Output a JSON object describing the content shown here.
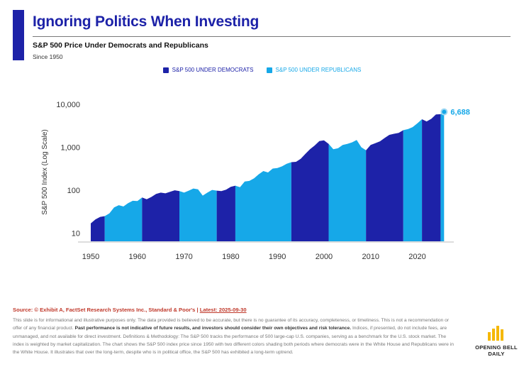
{
  "header": {
    "title": "Ignoring Politics When Investing",
    "subtitle": "S&P 500 Price Under Democrats and Republicans",
    "since": "Since 1950"
  },
  "colors": {
    "democrats": "#1d22a8",
    "republicans": "#16a8e8",
    "accent": "#1d22a8",
    "source": "#c0392b",
    "logo": "#f5b800"
  },
  "chart_data": {
    "type": "area",
    "legend": [
      "S&P 500 UNDER DEMOCRATS",
      "S&P 500 UNDER REPUBLICANS"
    ],
    "legend_position": "top-center",
    "ylabel": "S&P 500 Index (Log Scale)",
    "xlabel": "",
    "yscale": "log",
    "ylim": [
      7,
      10000
    ],
    "xlim": [
      1950,
      2026
    ],
    "xticks": [
      "1950",
      "1960",
      "1970",
      "1980",
      "1990",
      "2000",
      "2010",
      "2020"
    ],
    "yticks": [
      "10,000",
      "1,000",
      "100",
      "10"
    ],
    "ytick_values": [
      10000,
      1000,
      100,
      10
    ],
    "grid": false,
    "annotation": {
      "label": "6,688",
      "x": 2025.75,
      "y": 6688
    },
    "regimes": [
      {
        "start": 1950,
        "end": 1953,
        "party": "Democrats"
      },
      {
        "start": 1953,
        "end": 1961,
        "party": "Republicans"
      },
      {
        "start": 1961,
        "end": 1969,
        "party": "Democrats"
      },
      {
        "start": 1969,
        "end": 1977,
        "party": "Republicans"
      },
      {
        "start": 1977,
        "end": 1981,
        "party": "Democrats"
      },
      {
        "start": 1981,
        "end": 1993,
        "party": "Republicans"
      },
      {
        "start": 1993,
        "end": 2001,
        "party": "Democrats"
      },
      {
        "start": 2001,
        "end": 2009,
        "party": "Republicans"
      },
      {
        "start": 2009,
        "end": 2017,
        "party": "Democrats"
      },
      {
        "start": 2017,
        "end": 2021,
        "party": "Republicans"
      },
      {
        "start": 2021,
        "end": 2025,
        "party": "Democrats"
      },
      {
        "start": 2025,
        "end": 2025.75,
        "party": "Republicans"
      }
    ],
    "series": [
      {
        "name": "S&P 500",
        "x": [
          1950,
          1951,
          1952,
          1953,
          1954,
          1955,
          1956,
          1957,
          1958,
          1959,
          1960,
          1961,
          1962,
          1963,
          1964,
          1965,
          1966,
          1967,
          1968,
          1969,
          1970,
          1971,
          1972,
          1973,
          1974,
          1975,
          1976,
          1977,
          1978,
          1979,
          1980,
          1981,
          1982,
          1983,
          1984,
          1985,
          1986,
          1987,
          1988,
          1989,
          1990,
          1991,
          1992,
          1993,
          1994,
          1995,
          1996,
          1997,
          1998,
          1999,
          2000,
          2001,
          2002,
          2003,
          2004,
          2005,
          2006,
          2007,
          2008,
          2009,
          2010,
          2011,
          2012,
          2013,
          2014,
          2015,
          2016,
          2017,
          2018,
          2019,
          2020,
          2021,
          2022,
          2023,
          2024,
          2025,
          2025.75
        ],
        "values": [
          17,
          21,
          24,
          25,
          29,
          40,
          45,
          42,
          50,
          57,
          56,
          68,
          62,
          70,
          82,
          88,
          85,
          92,
          100,
          96,
          88,
          98,
          110,
          105,
          75,
          88,
          102,
          98,
          96,
          103,
          120,
          128,
          118,
          160,
          165,
          190,
          235,
          280,
          260,
          320,
          330,
          360,
          415,
          450,
          460,
          540,
          700,
          900,
          1100,
          1400,
          1450,
          1200,
          900,
          950,
          1130,
          1200,
          1300,
          1480,
          1000,
          850,
          1130,
          1250,
          1380,
          1650,
          1950,
          2060,
          2170,
          2500,
          2650,
          2950,
          3600,
          4500,
          4000,
          4600,
          5800,
          5900,
          6688
        ]
      }
    ]
  },
  "source": {
    "text": "Source: © Exhibit A, FactSet Research Systems Inc., Standard & Poor's |",
    "latest": "Latest: 2025-09-30"
  },
  "disclaimer": {
    "part1": "This slide is for informational and illustrative purposes only. The data provided is believed to be accurate, but there is no guarantee of its accuracy, completeness, or timeliness. This is not a recommendation or offer of any financial product.",
    "bold": "Past performance is not indicative of future results, and investors should consider their own objectives and risk tolerance.",
    "part2": "Indices, if presented, do not include fees, are unmanaged, and not available for direct investment. Definitions & Methodology: The S&P 500 tracks the performance of 500 large-cap U.S. companies, serving as a benchmark for the U.S. stock market. The index is weighted by market capitalization. The chart shows the S&P 500 index price since 1950 with two different colors shading both periods where democrats were in the White House and Republicans were in the White House. It illustrates that over the long-term, despite who is in political office, the S&P 500 has exhibited a long-term uptrend."
  },
  "logo": {
    "line1": "OPENING BELL",
    "line2": "DAILY"
  }
}
